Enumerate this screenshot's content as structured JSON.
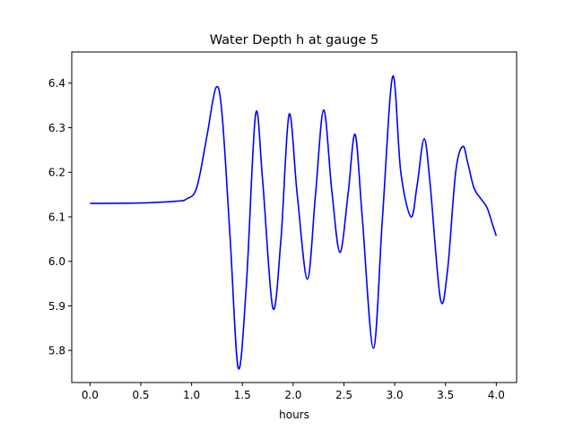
{
  "chart_data": {
    "type": "line",
    "title": "Water Depth h at gauge 5",
    "xlabel": "hours",
    "ylabel": "",
    "xlim": [
      -0.18,
      4.2
    ],
    "ylim": [
      5.728,
      6.47
    ],
    "xticks": [
      0.0,
      0.5,
      1.0,
      1.5,
      2.0,
      2.5,
      3.0,
      3.5,
      4.0
    ],
    "xtick_labels": [
      "0.0",
      "0.5",
      "1.0",
      "1.5",
      "2.0",
      "2.5",
      "3.0",
      "3.5",
      "4.0"
    ],
    "yticks": [
      5.8,
      5.9,
      6.0,
      6.1,
      6.2,
      6.3,
      6.4
    ],
    "ytick_labels": [
      "5.8",
      "5.9",
      "6.0",
      "6.1",
      "6.2",
      "6.3",
      "6.4"
    ],
    "grid": false,
    "series": [
      {
        "color": "#0000ff",
        "x": [
          0.0,
          0.5,
          0.85,
          0.95,
          1.05,
          1.15,
          1.24,
          1.3,
          1.38,
          1.46,
          1.54,
          1.63,
          1.7,
          1.8,
          1.88,
          1.96,
          2.04,
          2.14,
          2.22,
          2.3,
          2.38,
          2.46,
          2.54,
          2.61,
          2.68,
          2.79,
          2.88,
          2.98,
          3.06,
          3.16,
          3.22,
          3.29,
          3.35,
          3.45,
          3.52,
          3.6,
          3.67,
          3.72,
          3.78,
          3.85,
          3.91,
          3.96,
          4.0
        ],
        "y": [
          6.13,
          6.131,
          6.135,
          6.14,
          6.165,
          6.28,
          6.39,
          6.33,
          6.05,
          5.76,
          5.95,
          6.33,
          6.18,
          5.895,
          6.05,
          6.33,
          6.15,
          5.96,
          6.15,
          6.34,
          6.16,
          6.02,
          6.15,
          6.285,
          6.1,
          5.805,
          6.1,
          6.415,
          6.2,
          6.1,
          6.17,
          6.275,
          6.17,
          5.915,
          5.98,
          6.2,
          6.258,
          6.22,
          6.165,
          6.14,
          6.12,
          6.085,
          6.057
        ]
      }
    ]
  }
}
